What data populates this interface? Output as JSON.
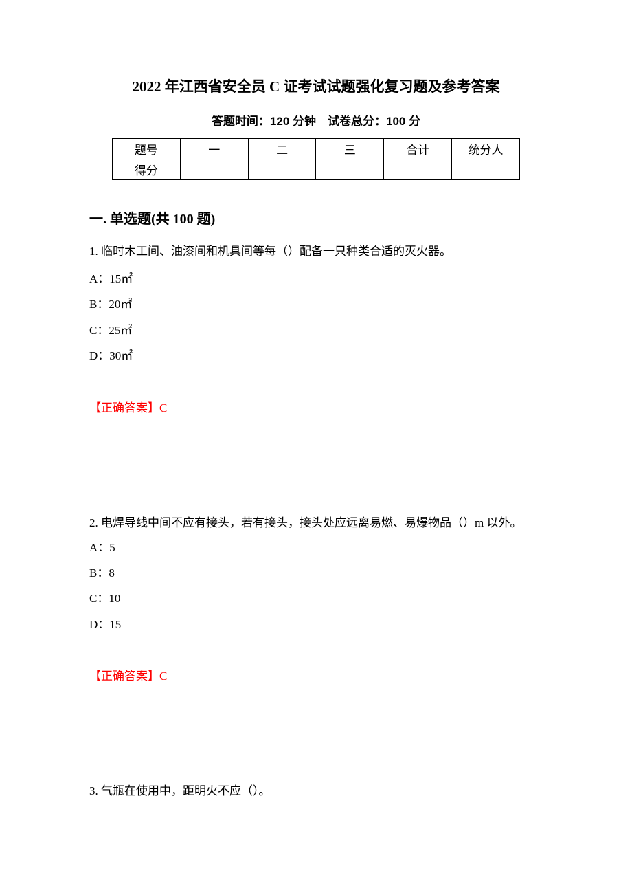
{
  "title": "2022 年江西省安全员 C 证考试试题强化复习题及参考答案",
  "subtitle": "答题时间：120 分钟 试卷总分：100 分",
  "table": {
    "headers": [
      "题号",
      "一",
      "二",
      "三",
      "合计",
      "统分人"
    ],
    "row2_label": "得分"
  },
  "section": {
    "heading": "一. 单选题(共 100 题)"
  },
  "questions": [
    {
      "number": "1.",
      "text": "临时木工间、油漆间和机具间等每（）配备一只种类合适的灭火器。",
      "options": [
        "A：15㎡",
        "B：20㎡",
        "C：25㎡",
        "D：30㎡"
      ],
      "answer_label": "【正确答案】",
      "answer_value": "C"
    },
    {
      "number": "2.",
      "text": "电焊导线中间不应有接头，若有接头，接头处应远离易燃、易爆物品（）m 以外。",
      "options": [
        "A：5",
        "B：8",
        "C：10",
        "D：15"
      ],
      "answer_label": "【正确答案】",
      "answer_value": "C"
    },
    {
      "number": "3.",
      "text": "气瓶在使用中，距明火不应（）。",
      "options": [],
      "answer_label": "",
      "answer_value": ""
    }
  ],
  "colors": {
    "text": "#000000",
    "answer": "#ff0000",
    "background": "#ffffff",
    "border": "#000000"
  }
}
